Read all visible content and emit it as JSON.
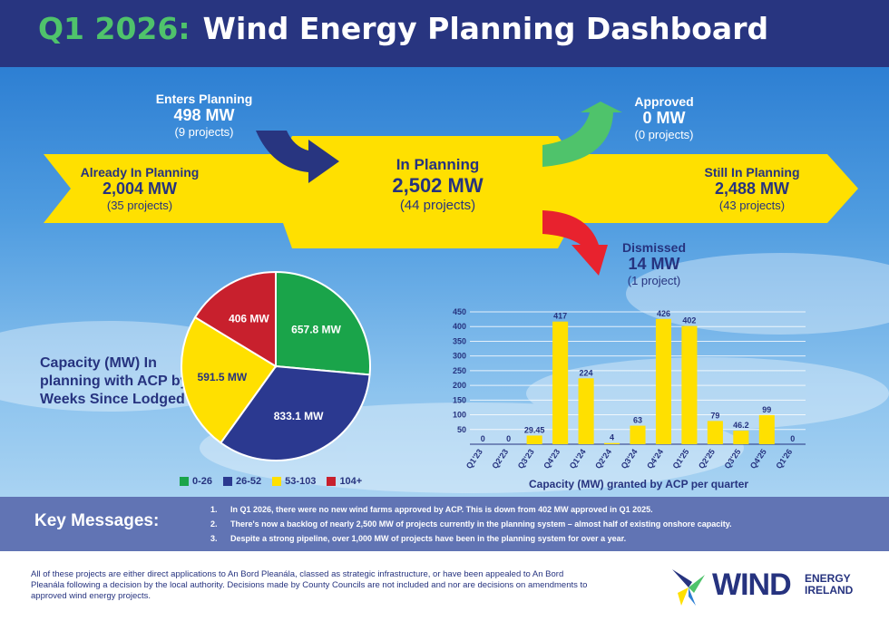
{
  "header": {
    "quarter": "Q1 2026:",
    "title": "Wind Energy Planning Dashboard"
  },
  "flow": {
    "enters": {
      "label": "Enters Planning",
      "value": "498 MW",
      "count": "(9 projects)"
    },
    "already": {
      "label": "Already In Planning",
      "value": "2,004  MW",
      "count": "(35 projects)"
    },
    "in_planning": {
      "label": "In Planning",
      "value": "2,502 MW",
      "count": "(44 projects)"
    },
    "approved": {
      "label": "Approved",
      "value": "0 MW",
      "count": "(0 projects)"
    },
    "still": {
      "label": "Still In Planning",
      "value": "2,488 MW",
      "count": "(43 projects)"
    },
    "dismissed": {
      "label": "Dismissed",
      "value": "14 MW",
      "count": "(1 project)"
    }
  },
  "pie_title": "Capacity (MW) In planning with ACP by Weeks Since Lodged",
  "bar_caption": "Capacity (MW) granted by ACP per quarter",
  "colors": {
    "navy": "#26337f",
    "green": "#1aa44a",
    "blue": "#2b3990",
    "yellow": "#ffe000",
    "red": "#c8202d",
    "grass": "#4fc36b"
  },
  "chart_data": [
    {
      "type": "pie",
      "title": "Capacity (MW) In planning with ACP by Weeks Since Lodged",
      "slices": [
        {
          "label": "0-26",
          "value": 657.8,
          "display": "657.8 MW",
          "color": "#1aa44a"
        },
        {
          "label": "26-52",
          "value": 833.1,
          "display": "833.1 MW",
          "color": "#2b3990"
        },
        {
          "label": "53-103",
          "value": 591.5,
          "display": "591.5 MW",
          "color": "#ffe000"
        },
        {
          "label": "104+",
          "value": 406,
          "display": "406 MW",
          "color": "#c8202d"
        }
      ],
      "legend": "bottom"
    },
    {
      "type": "bar",
      "title": "Capacity (MW) granted by ACP per quarter",
      "categories": [
        "Q1'23",
        "Q2'23",
        "Q3'23",
        "Q4'23",
        "Q1'24",
        "Q2'24",
        "Q3'24",
        "Q4'24",
        "Q1'25",
        "Q2'25",
        "Q3'25",
        "Q4'25",
        "Q1'26"
      ],
      "values": [
        0,
        0,
        29.45,
        417,
        224,
        4,
        63,
        426,
        402,
        79,
        46.2,
        99,
        0
      ],
      "data_labels": [
        "0",
        "0",
        "29.45",
        "417",
        "224",
        "4",
        "63",
        "426",
        "402",
        "79",
        "46.2",
        "99",
        "0"
      ],
      "yticks": [
        50,
        100,
        150,
        200,
        250,
        300,
        350,
        400,
        450
      ],
      "ylim": [
        0,
        450
      ],
      "grid": true,
      "color": "#ffe000"
    }
  ],
  "key_messages": {
    "heading": "Key Messages:",
    "items": [
      {
        "num": "1.",
        "text": "In Q1 2026, there were no new wind farms approved by ACP. This is down from 402 MW approved in Q1 2025."
      },
      {
        "num": "2.",
        "text": "There's now a backlog of nearly 2,500 MW of projects currently in the planning system – almost half of existing onshore capacity."
      },
      {
        "num": "3.",
        "text": "Despite a strong pipeline, over 1,000 MW of projects have been in the planning system for over a year."
      }
    ]
  },
  "footnote": "All of these projects are either direct applications to An Bord Pleanála, classed as strategic infrastructure, or have been appealed to An Bord Pleanála following a decision by the local authority. Decisions made by County Councils are not included and nor are decisions on amendments to approved wind energy projects.",
  "logo": {
    "word": "WIND",
    "line1": "ENERGY",
    "line2": "IRELAND"
  }
}
